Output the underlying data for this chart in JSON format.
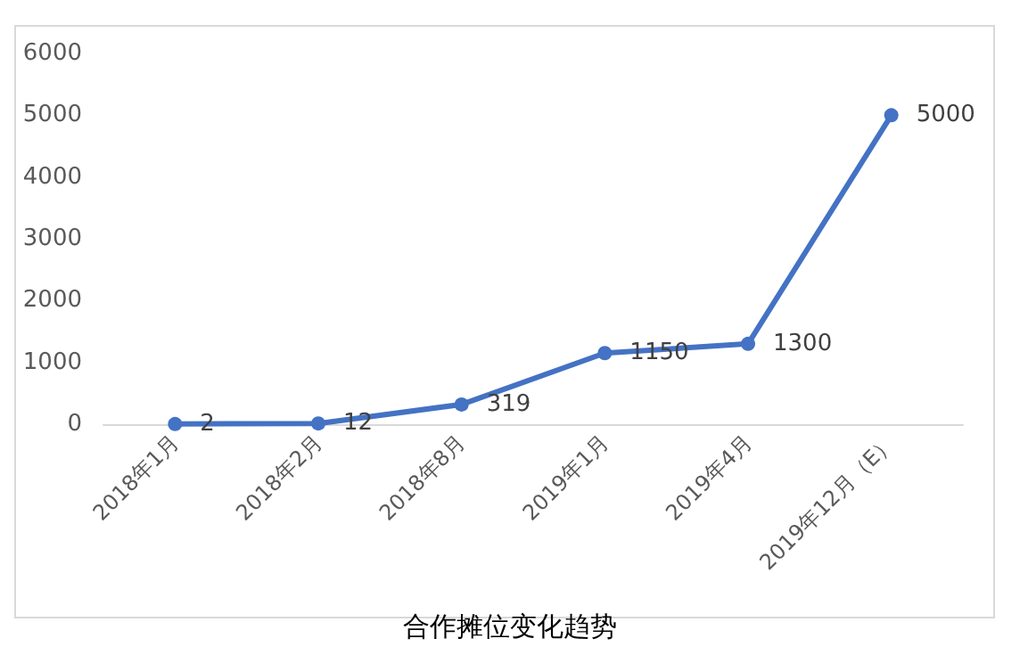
{
  "chart_data": {
    "type": "line",
    "title": "合作摊位变化趋势",
    "categories": [
      "2018年1月",
      "2018年2月",
      "2018年8月",
      "2019年1月",
      "2019年4月",
      "2019年12月（E）"
    ],
    "series": [
      {
        "color": "#4472c4",
        "values": [
          2,
          12,
          319,
          1150,
          1300,
          5000
        ]
      }
    ],
    "ylim": [
      0,
      6000
    ],
    "yticks": [
      0,
      1000,
      2000,
      3000,
      4000,
      5000,
      6000
    ],
    "grid": false,
    "marker": "circle",
    "line_style": "solid",
    "data_labels": true
  }
}
